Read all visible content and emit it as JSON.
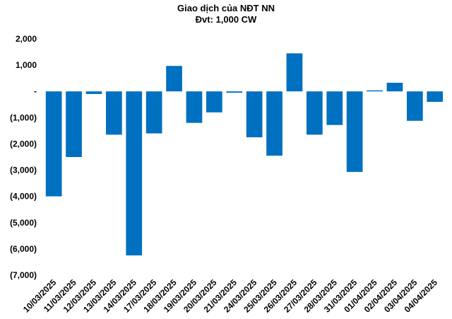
{
  "chart_data": {
    "type": "bar",
    "title": "Giao dịch của NĐT NN",
    "subtitle": "Đvt: 1,000 CW",
    "xlabel": "",
    "ylabel": "",
    "ylim": [
      -7000,
      2000
    ],
    "yticks": [
      2000,
      1000,
      0,
      -1000,
      -2000,
      -3000,
      -4000,
      -5000,
      -6000,
      -7000
    ],
    "ytick_labels": [
      "2,000",
      "1,000",
      "-",
      "(1,000)",
      "(2,000)",
      "(3,000)",
      "(4,000)",
      "(5,000)",
      "(6,000)",
      "(7,000)"
    ],
    "grid": false,
    "bar_color": "#0070C0",
    "categories": [
      "10/03/2025",
      "11/03/2025",
      "12/03/2025",
      "13/03/2025",
      "14/03/2025",
      "17/03/2025",
      "18/03/2025",
      "19/03/2025",
      "20/03/2025",
      "21/03/2025",
      "24/03/2025",
      "25/03/2025",
      "26/03/2025",
      "27/03/2025",
      "28/03/2025",
      "31/03/2025",
      "01/04/2025",
      "02/04/2025",
      "03/04/2025",
      "04/04/2025"
    ],
    "values": [
      -4000,
      -2500,
      -100,
      -1650,
      -6250,
      -1600,
      970,
      -1200,
      -800,
      -50,
      -1750,
      -2450,
      1450,
      -1650,
      -1280,
      -3070,
      30,
      330,
      -1120,
      -400
    ]
  }
}
